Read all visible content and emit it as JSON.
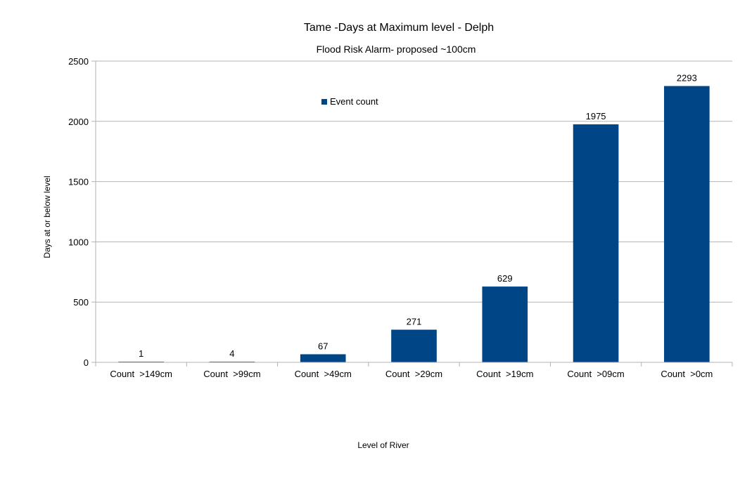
{
  "chart_data": {
    "type": "bar",
    "title": "Tame -Days at Maximum level - Delph",
    "subtitle": "Flood Risk Alarm- proposed ~100cm",
    "xlabel": "Level of River",
    "ylabel": "Days at or below level",
    "categories": [
      "Count  >149cm",
      "Count  >99cm",
      "Count  >49cm",
      "Count  >29cm",
      "Count  >19cm",
      "Count  >09cm",
      "Count  >0cm"
    ],
    "series": [
      {
        "name": "Event count",
        "values": [
          1,
          4,
          67,
          271,
          629,
          1975,
          2293
        ],
        "color": "#004586"
      }
    ],
    "ylim": [
      0,
      2500
    ],
    "yticks": [
      "0",
      "500",
      "1000",
      "1500",
      "2000",
      "2500"
    ],
    "grid": true,
    "legend_position": "top-center"
  }
}
